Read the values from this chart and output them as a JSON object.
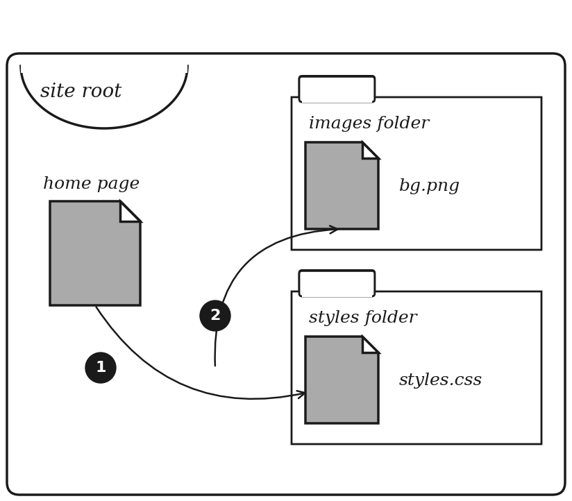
{
  "bg_color": "#ffffff",
  "border_color": "#1a1a1a",
  "file_fill_color": "#aaaaaa",
  "folder_fill": "#ffffff",
  "text_color": "#1a1a1a",
  "site_root_label": "site root",
  "home_page_label": "home page",
  "images_folder_label": "images folder",
  "bg_png_label": "bg.png",
  "styles_folder_label": "styles folder",
  "styles_css_label": "styles.css",
  "label1": "1",
  "label2": "2",
  "circle_color": "#1a1a1a",
  "circle_text_color": "#ffffff",
  "lw_outer": 2.5,
  "lw_inner": 2.0
}
